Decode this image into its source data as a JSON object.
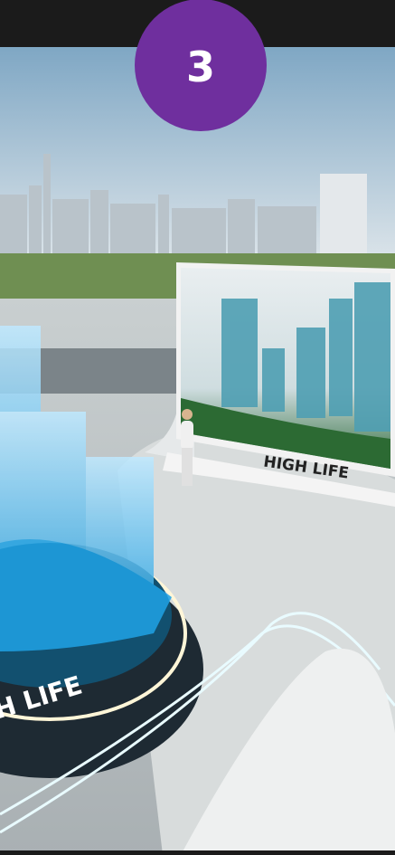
{
  "badge": {
    "number": "3"
  },
  "panel": {
    "caption": "HIGH LIFE"
  },
  "podium": {
    "label": "H LIFE"
  }
}
